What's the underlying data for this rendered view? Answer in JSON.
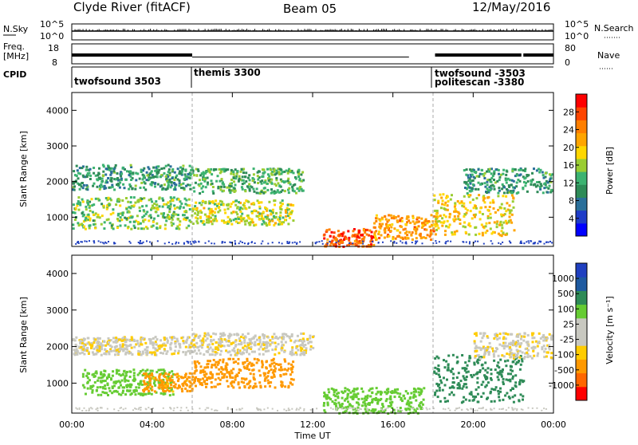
{
  "header": {
    "station": "Clyde River (fitACF)",
    "beam": "Beam 05",
    "date": "12/May/2016"
  },
  "nsky_panel": {
    "left_label": "N.Sky",
    "right_label": "N.Search",
    "left_ticks": [
      "10^5",
      "10^0"
    ],
    "right_ticks": [
      "10^5",
      "10^0"
    ]
  },
  "freq_panel": {
    "left_label_1": "Freq.",
    "left_label_2": "[MHz]",
    "right_label": "Nave",
    "left_ticks": [
      "18",
      "8"
    ],
    "right_ticks": [
      "80",
      "0"
    ]
  },
  "cpid_panel": {
    "label": "CPID",
    "modes": [
      {
        "name": "twofsound 3503",
        "start_hour": 0.0
      },
      {
        "name": "themis 3300",
        "start_hour": 6.0
      },
      {
        "name": "twofsound -3503",
        "start_hour": 18.0
      },
      {
        "name": "politescan -3380",
        "start_hour": 18.0
      }
    ]
  },
  "colors": {
    "power_scale": [
      "#0000ff",
      "#1e3cc8",
      "#2a6f9a",
      "#2e8b57",
      "#3cb371",
      "#9acd32",
      "#ffd700",
      "#ffa500",
      "#ff7f00",
      "#ff4500",
      "#ff0000"
    ],
    "velocity_scale": [
      "#ff0000",
      "#ff6600",
      "#ff9900",
      "#ffcc00",
      "#c8c8c0",
      "#c8c8c0",
      "#66cc33",
      "#2e8b57",
      "#1e5aa0",
      "#2040c0"
    ]
  },
  "chart_data": [
    {
      "type": "heatmap",
      "name": "power",
      "ylabel": "Slant Range [km]",
      "xlabel": "Time UT",
      "xlim_hours": [
        0,
        24
      ],
      "ylim": [
        180,
        4500
      ],
      "x_ticks": [
        "00:00",
        "04:00",
        "08:00",
        "12:00",
        "16:00",
        "20:00",
        "00:00"
      ],
      "y_ticks": [
        1000,
        2000,
        3000,
        4000
      ],
      "colorbar_label": "Power [dB]",
      "colorbar_ticks": [
        "4",
        "8",
        "12",
        "16",
        "20",
        "24",
        "28"
      ],
      "colorbar_range": [
        0,
        30
      ],
      "scatter_bands": [
        {
          "t0": 0.0,
          "t1": 6.0,
          "r0": 1800,
          "r1": 2500,
          "value": 10
        },
        {
          "t0": 0.0,
          "t1": 6.0,
          "r0": 700,
          "r1": 1600,
          "value": 14
        },
        {
          "t0": 6.0,
          "t1": 11.5,
          "r0": 1700,
          "r1": 2400,
          "value": 12
        },
        {
          "t0": 6.0,
          "t1": 11.0,
          "r0": 800,
          "r1": 1500,
          "value": 16
        },
        {
          "t0": 12.5,
          "t1": 15.0,
          "r0": 200,
          "r1": 700,
          "value": 26
        },
        {
          "t0": 15.0,
          "t1": 18.0,
          "r0": 400,
          "r1": 1100,
          "value": 22
        },
        {
          "t0": 18.0,
          "t1": 22.0,
          "r0": 500,
          "r1": 1700,
          "value": 18
        },
        {
          "t0": 19.5,
          "t1": 23.9,
          "r0": 1700,
          "r1": 2400,
          "value": 10
        }
      ]
    },
    {
      "type": "heatmap",
      "name": "velocity",
      "ylabel": "Slant Range [km]",
      "xlabel": "Time UT",
      "xlim_hours": [
        0,
        24
      ],
      "ylim": [
        180,
        4500
      ],
      "x_ticks": [
        "00:00",
        "04:00",
        "08:00",
        "12:00",
        "16:00",
        "20:00",
        "00:00"
      ],
      "y_ticks": [
        1000,
        2000,
        3000,
        4000
      ],
      "colorbar_label": "Velocity [m s⁻¹]",
      "colorbar_ticks": [
        "1000",
        "500",
        "100",
        "25",
        "-25",
        "-100",
        "-500",
        "-1000"
      ],
      "scatter_bands": [
        {
          "t0": 0.0,
          "t1": 6.0,
          "r0": 1800,
          "r1": 2300,
          "value": 0
        },
        {
          "t0": 0.5,
          "t1": 5.0,
          "r0": 700,
          "r1": 1400,
          "value": 300
        },
        {
          "t0": 3.5,
          "t1": 6.0,
          "r0": 800,
          "r1": 1300,
          "value": -150
        },
        {
          "t0": 6.0,
          "t1": 11.0,
          "r0": 900,
          "r1": 1700,
          "value": -400
        },
        {
          "t0": 6.0,
          "t1": 12.0,
          "r0": 1800,
          "r1": 2400,
          "value": 0
        },
        {
          "t0": 12.5,
          "t1": 17.5,
          "r0": 200,
          "r1": 900,
          "value": 200
        },
        {
          "t0": 18.0,
          "t1": 22.5,
          "r0": 500,
          "r1": 1800,
          "value": 700
        },
        {
          "t0": 20.0,
          "t1": 23.9,
          "r0": 1700,
          "r1": 2400,
          "value": 0
        }
      ]
    }
  ]
}
